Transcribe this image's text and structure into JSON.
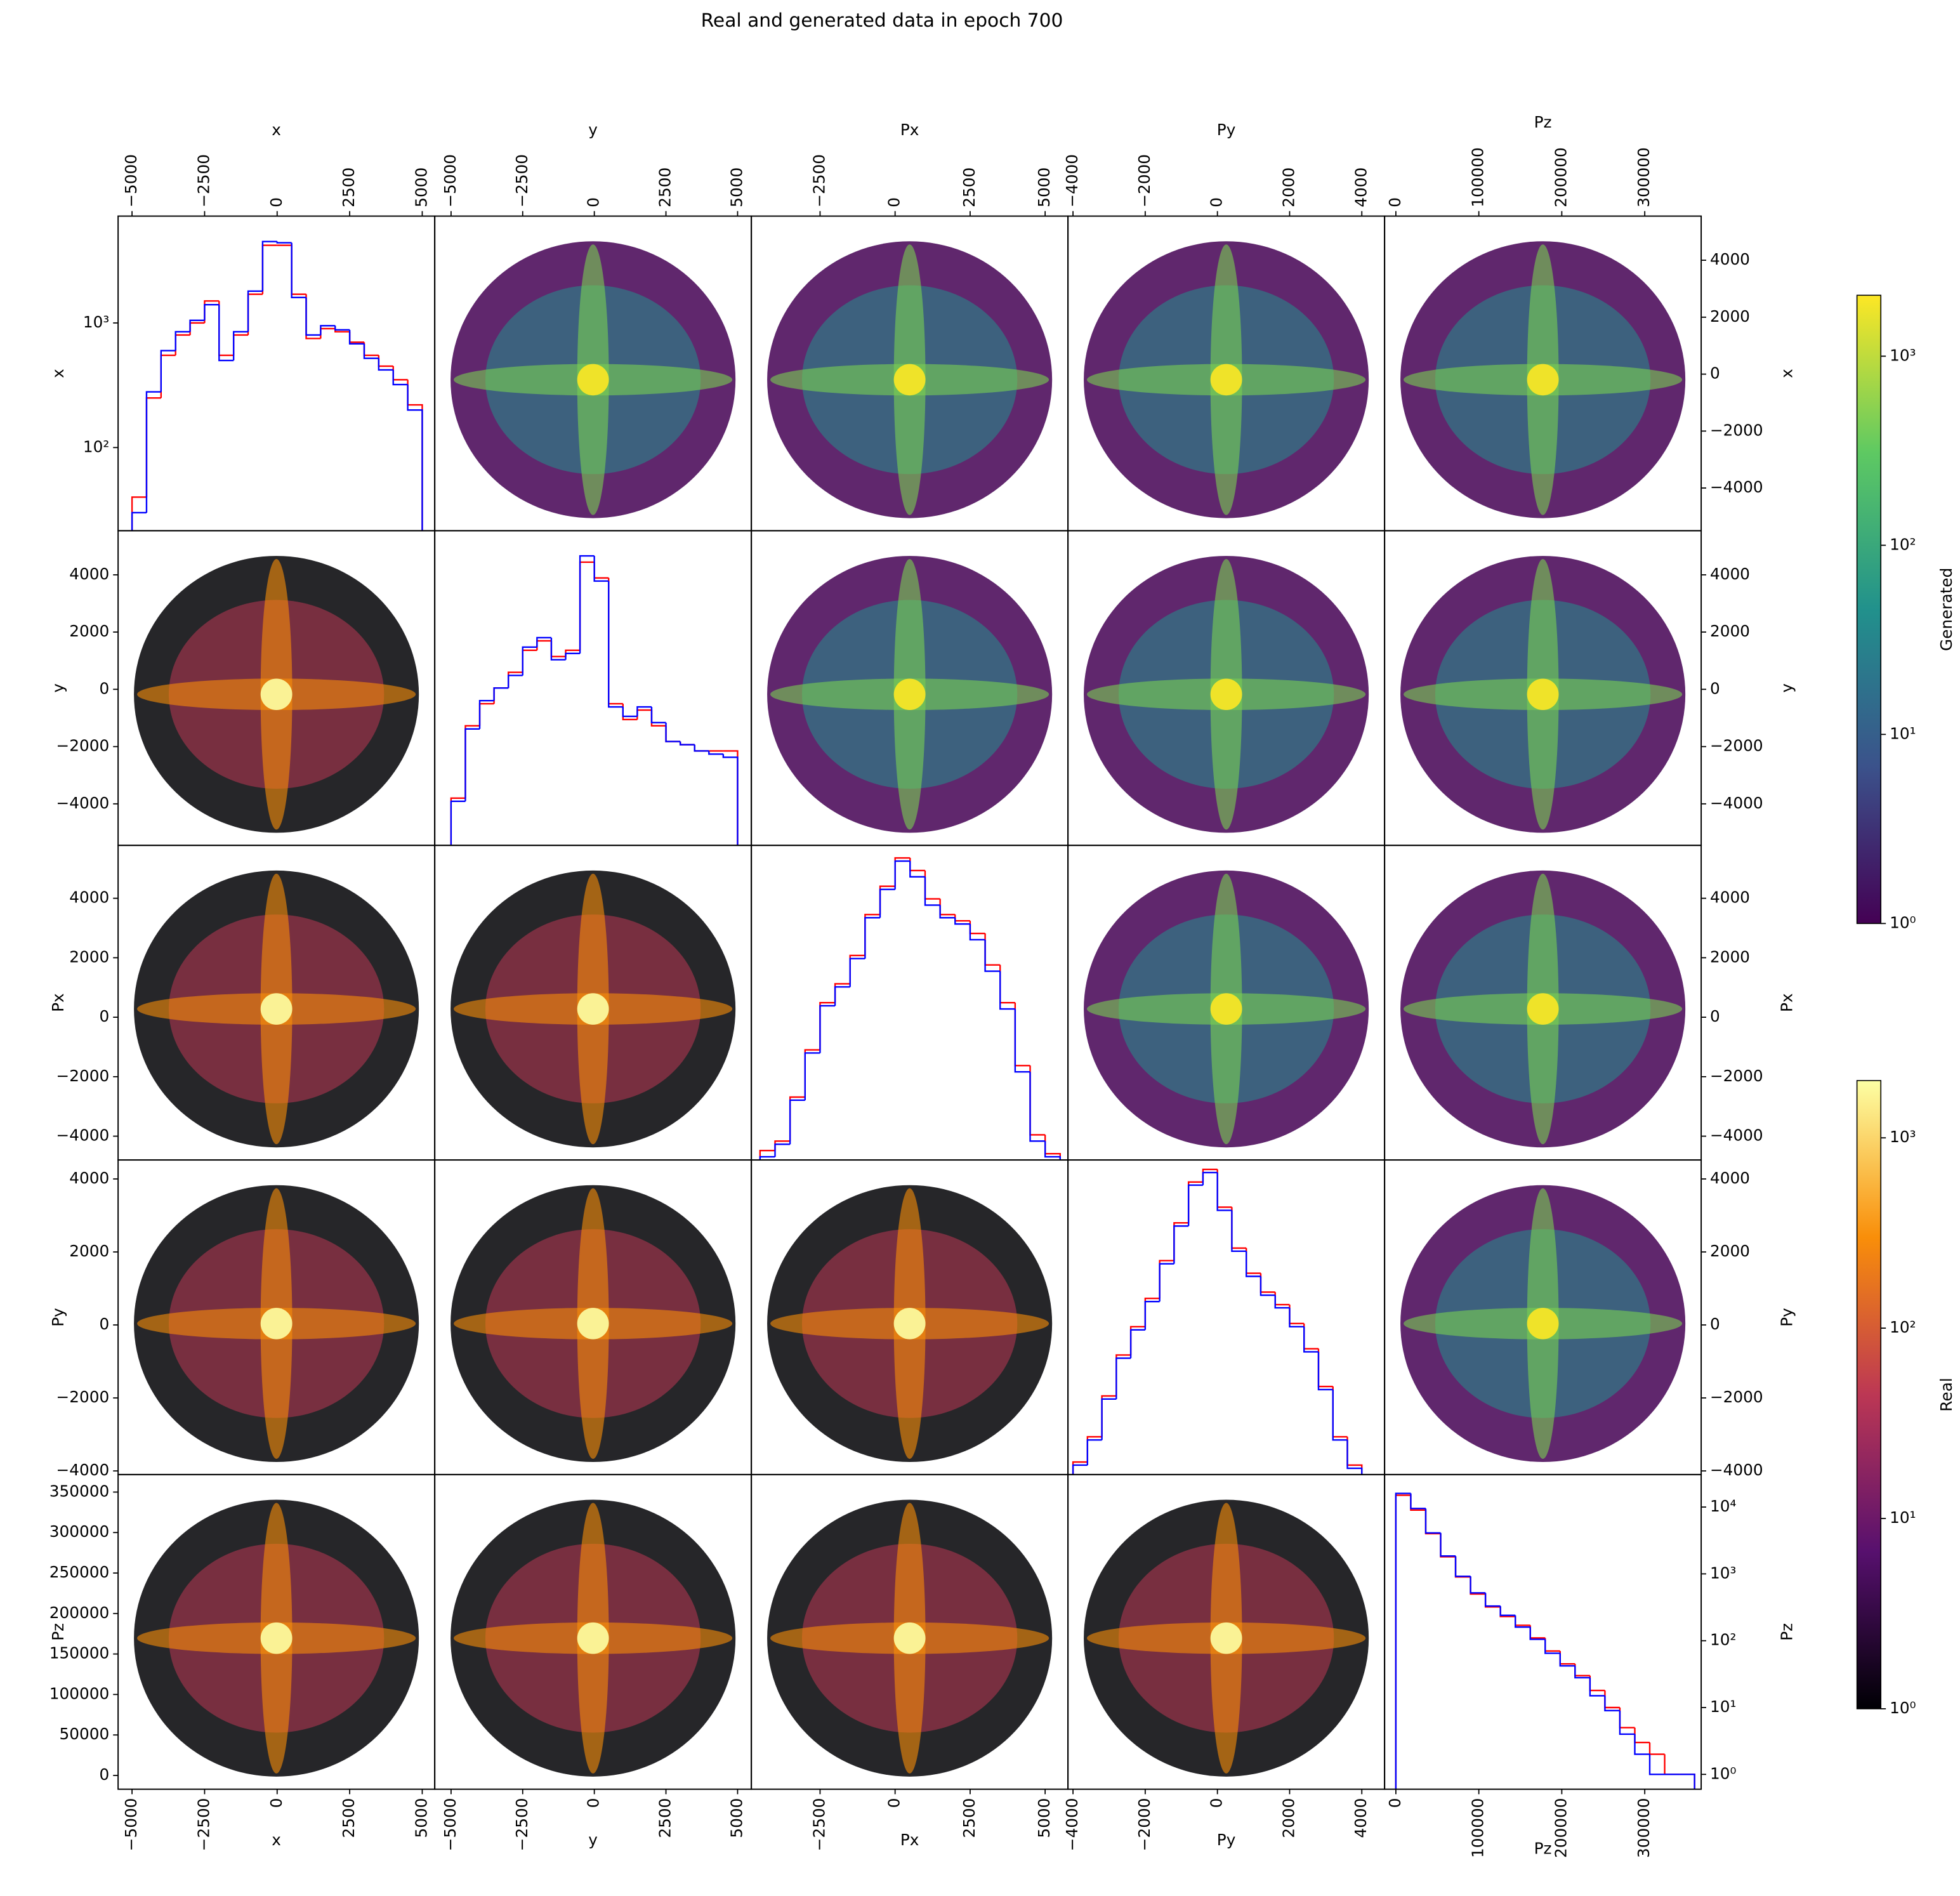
{
  "chart_data": {
    "type": "pair-histogram",
    "title": "Real and generated data in epoch 700",
    "columns": [
      {
        "label": "x",
        "xlim": [
          -5480,
          5430
        ],
        "xticks": [
          {
            "value": -5000,
            "label": "−5000"
          },
          {
            "value": -2500,
            "label": "−2500"
          },
          0,
          2500,
          5000
        ]
      },
      {
        "label": "y",
        "xlim": [
          -5570,
          5480
        ],
        "xticks": [
          {
            "value": -5000,
            "label": "−5000"
          },
          {
            "value": -2500,
            "label": "−2500"
          },
          0,
          2500,
          5000
        ]
      },
      {
        "label": "Px",
        "xlim": [
          -4790,
          5760
        ],
        "xticks": [
          {
            "value": -2500,
            "label": "−2500"
          },
          0,
          2500,
          5000
        ]
      },
      {
        "label": "Py",
        "xlim": [
          -4140,
          4630
        ],
        "xticks": [
          {
            "value": -4000,
            "label": "−4000"
          },
          {
            "value": -2000,
            "label": "−2000"
          },
          0,
          2000,
          4000
        ]
      },
      {
        "label": "Pz",
        "xlim": [
          -13600,
          368000
        ],
        "xticks": [
          0,
          100000,
          200000,
          300000
        ]
      }
    ],
    "rows": [
      {
        "label": "x",
        "ylim": [
          -5500,
          5550
        ],
        "yticks": [
          {
            "value": -4000,
            "label": "−4000"
          },
          {
            "value": -2000,
            "label": "−2000"
          },
          0,
          2000,
          4000
        ]
      },
      {
        "label": "y",
        "ylim": [
          -5450,
          5540
        ],
        "yticks": [
          {
            "value": -4000,
            "label": "−4000"
          },
          {
            "value": -2000,
            "label": "−2000"
          },
          0,
          2000,
          4000
        ]
      },
      {
        "label": "Px",
        "ylim": [
          -4800,
          5780
        ],
        "yticks": [
          {
            "value": -4000,
            "label": "−4000"
          },
          {
            "value": -2000,
            "label": "−2000"
          },
          0,
          2000,
          4000
        ]
      },
      {
        "label": "Py",
        "ylim": [
          -4100,
          4520
        ],
        "yticks": [
          {
            "value": -4000,
            "label": "−4000"
          },
          {
            "value": -2000,
            "label": "−2000"
          },
          0,
          2000,
          4000
        ]
      },
      {
        "label": "Pz",
        "ylim": [
          -17000,
          371600
        ],
        "yticks": [
          0,
          50000,
          100000,
          150000,
          200000,
          250000,
          300000,
          350000
        ]
      }
    ],
    "diagonal": [
      {
        "bins": [
          -5000,
          -4500,
          -4000,
          -3500,
          -3000,
          -2500,
          -2000,
          -1500,
          -1000,
          -500,
          0,
          500,
          1000,
          1500,
          2000,
          2500,
          3000,
          3500,
          4000,
          4500,
          5000
        ],
        "yscale": "log",
        "ylim": [
          21.5,
          7200
        ],
        "yticks": [
          {
            "value": 100,
            "label": "10²"
          },
          {
            "value": 1000,
            "label": "10³"
          }
        ],
        "series": [
          {
            "color": "#ff0000",
            "values": [
              40,
              250,
              550,
              800,
              1000,
              1500,
              550,
              800,
              1700,
              4200,
              4200,
              1700,
              750,
              900,
              850,
              700,
              550,
              450,
              350,
              220
            ]
          },
          {
            "color": "#0000ff",
            "values": [
              30,
              280,
              600,
              850,
              1050,
              1400,
              500,
              850,
              1800,
              4500,
              4400,
              1600,
              800,
              950,
              880,
              680,
              520,
              420,
              320,
              200
            ]
          }
        ]
      },
      {
        "bins": [
          -5000,
          -4500,
          -4000,
          -3500,
          -3000,
          -2500,
          -2000,
          -1500,
          -1000,
          -500,
          0,
          500,
          1000,
          1500,
          2000,
          2500,
          3000,
          3500,
          4000,
          4500,
          5000
        ],
        "yscale": "linear",
        "ylim": [
          0,
          1000
        ],
        "series": [
          {
            "color": "#ff0000",
            "values": [
              150,
              380,
              450,
              500,
              550,
              620,
              650,
              600,
              620,
              900,
              850,
              450,
              400,
              430,
              380,
              330,
              320,
              300,
              300,
              300
            ]
          },
          {
            "color": "#0000ff",
            "values": [
              140,
              370,
              460,
              500,
              540,
              630,
              660,
              590,
              610,
              920,
              840,
              440,
              410,
              440,
              390,
              330,
              320,
              300,
              290,
              280
            ]
          }
        ]
      },
      {
        "bins": [
          -4500,
          -4000,
          -3500,
          -3000,
          -2500,
          -2000,
          -1500,
          -1000,
          -500,
          0,
          500,
          1000,
          1500,
          2000,
          2500,
          3000,
          3500,
          4000,
          4500,
          5000,
          5500
        ],
        "yscale": "linear",
        "ylim": [
          0,
          1000
        ],
        "series": [
          {
            "color": "#ff0000",
            "values": [
              30,
              60,
              200,
              350,
              500,
              560,
              650,
              780,
              870,
              960,
              920,
              830,
              780,
              760,
              720,
              620,
              500,
              300,
              80,
              20
            ]
          },
          {
            "color": "#0000ff",
            "values": [
              10,
              50,
              190,
              340,
              490,
              550,
              640,
              770,
              860,
              950,
              900,
              810,
              770,
              750,
              700,
              600,
              480,
              280,
              60,
              10
            ]
          }
        ]
      },
      {
        "bins": [
          -4000,
          -3600,
          -3200,
          -2800,
          -2400,
          -2000,
          -1600,
          -1200,
          -800,
          -400,
          0,
          400,
          800,
          1200,
          1600,
          2000,
          2400,
          2800,
          3200,
          3600,
          4000
        ],
        "yscale": "linear",
        "ylim": [
          0,
          1000
        ],
        "series": [
          {
            "color": "#ff0000",
            "values": [
              40,
              120,
              250,
              380,
              470,
              560,
              680,
              800,
              930,
              970,
              850,
              720,
              640,
              580,
              540,
              480,
              400,
              280,
              120,
              30
            ]
          },
          {
            "color": "#0000ff",
            "values": [
              30,
              110,
              240,
              370,
              460,
              550,
              670,
              790,
              920,
              960,
              840,
              710,
              630,
              570,
              530,
              470,
              390,
              270,
              110,
              20
            ]
          }
        ]
      },
      {
        "bins": [
          0,
          18000,
          36000,
          54000,
          72000,
          90000,
          108000,
          126000,
          144000,
          162000,
          180000,
          198000,
          216000,
          234000,
          252000,
          270000,
          288000,
          306000,
          324000,
          342000,
          360000
        ],
        "yscale": "log",
        "ylim": [
          0.6,
          30600
        ],
        "yticks": [
          {
            "value": 1,
            "label": "10⁰"
          },
          {
            "value": 10,
            "label": "10¹"
          },
          {
            "value": 100,
            "label": "10²"
          },
          {
            "value": 1000,
            "label": "10³"
          },
          {
            "value": 10000,
            "label": "10⁴"
          }
        ],
        "series": [
          {
            "color": "#ff0000",
            "values": [
              15000,
              9000,
              4000,
              1800,
              900,
              500,
              320,
              230,
              170,
              110,
              70,
              45,
              30,
              18,
              10,
              5,
              3,
              2,
              1,
              1
            ]
          },
          {
            "color": "#0000ff",
            "values": [
              16000,
              9500,
              4100,
              1850,
              920,
              520,
              330,
              240,
              160,
              105,
              65,
              42,
              28,
              15,
              9,
              4,
              2,
              1,
              1,
              1
            ]
          }
        ]
      }
    ],
    "colorbars": [
      {
        "label": "Generated",
        "colormap": "viridis",
        "scale": "log",
        "lim": [
          1,
          2100
        ],
        "ticks": [
          {
            "value": 1,
            "label": "10⁰"
          },
          {
            "value": 10,
            "label": "10¹"
          },
          {
            "value": 100,
            "label": "10²"
          },
          {
            "value": 1000,
            "label": "10³"
          }
        ]
      },
      {
        "label": "Real",
        "colormap": "inferno",
        "scale": "log",
        "lim": [
          1,
          2000
        ],
        "ticks": [
          {
            "value": 1,
            "label": "10⁰"
          },
          {
            "value": 10,
            "label": "10¹"
          },
          {
            "value": 100,
            "label": "10²"
          },
          {
            "value": 1000,
            "label": "10³"
          }
        ]
      }
    ]
  }
}
